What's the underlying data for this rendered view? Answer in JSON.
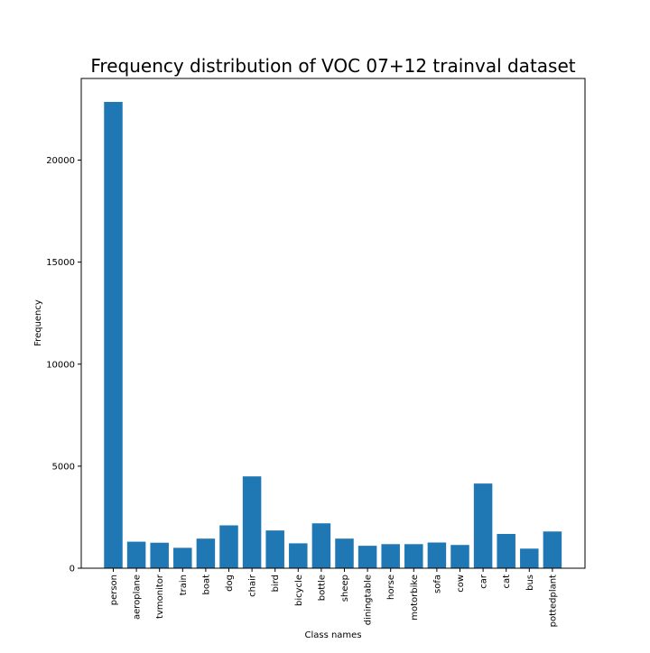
{
  "chart_data": {
    "type": "bar",
    "title": "Frequency distribution of VOC 07+12 trainval dataset",
    "xlabel": "Class names",
    "ylabel": "Frequency",
    "categories": [
      "person",
      "aeroplane",
      "tvmonitor",
      "train",
      "boat",
      "dog",
      "chair",
      "bird",
      "bicycle",
      "bottle",
      "sheep",
      "diningtable",
      "horse",
      "motorbike",
      "sofa",
      "cow",
      "car",
      "cat",
      "bus",
      "pottedplant"
    ],
    "values": [
      22850,
      1300,
      1250,
      1000,
      1450,
      2100,
      4500,
      1850,
      1220,
      2200,
      1450,
      1100,
      1180,
      1180,
      1260,
      1140,
      4150,
      1680,
      960,
      1800
    ],
    "ylim": [
      0,
      24000
    ],
    "yticks": [
      0,
      5000,
      10000,
      15000,
      20000
    ],
    "bar_color": "#1f77b4",
    "grid": false,
    "legend": false
  }
}
